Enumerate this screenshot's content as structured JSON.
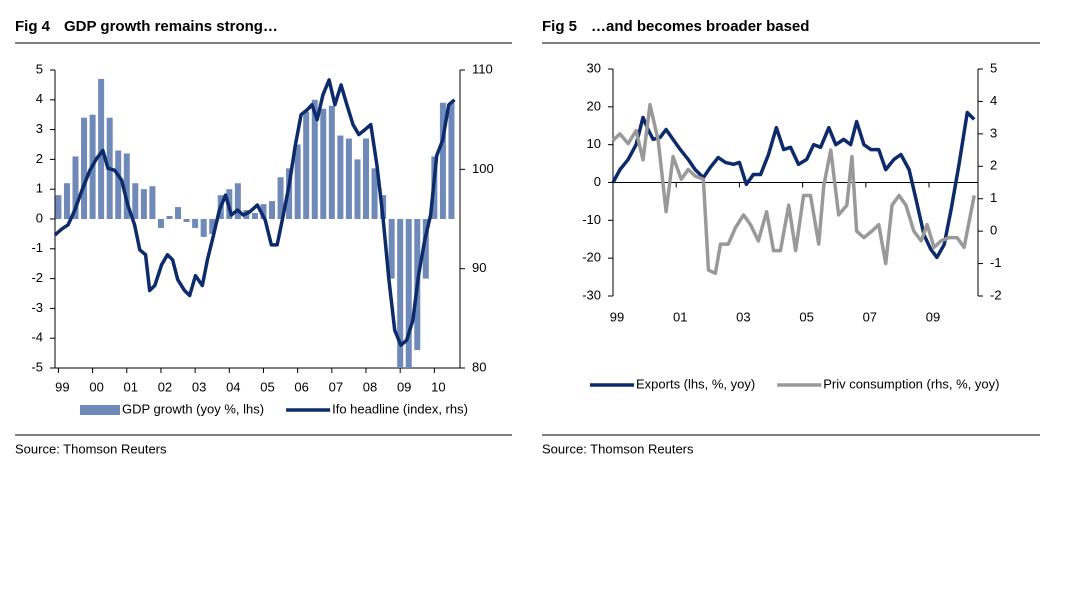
{
  "chart_data": [
    {
      "type": "bar",
      "figure": "Fig 4",
      "title": "GDP growth remains strong…",
      "source": "Source: Thomson Reuters",
      "xlim": [
        1998.9,
        2010.75
      ],
      "xticks": [
        {
          "value": 1999,
          "label": "99"
        },
        {
          "value": 2000,
          "label": "00"
        },
        {
          "value": 2001,
          "label": "01"
        },
        {
          "value": 2002,
          "label": "02"
        },
        {
          "value": 2003,
          "label": "03"
        },
        {
          "value": 2004,
          "label": "04"
        },
        {
          "value": 2005,
          "label": "05"
        },
        {
          "value": 2006,
          "label": "06"
        },
        {
          "value": 2007,
          "label": "07"
        },
        {
          "value": 2008,
          "label": "08"
        },
        {
          "value": 2009,
          "label": "09"
        },
        {
          "value": 2010,
          "label": "10"
        }
      ],
      "ylim": [
        -5,
        5
      ],
      "yticks": [
        -5,
        -4,
        -3,
        -2,
        -1,
        0,
        1,
        2,
        3,
        4,
        5
      ],
      "y2lim": [
        80,
        110
      ],
      "y2ticks": [
        80,
        90,
        100,
        110
      ],
      "series": [
        {
          "name": "GDP growth (yoy %, lhs)",
          "type": "bar",
          "color": "#6f89b9",
          "x": [
            1999,
            1999.25,
            1999.5,
            1999.75,
            2000,
            2000.25,
            2000.5,
            2000.75,
            2001,
            2001.25,
            2001.5,
            2001.75,
            2002,
            2002.25,
            2002.5,
            2002.75,
            2003,
            2003.25,
            2003.5,
            2003.75,
            2004,
            2004.25,
            2004.5,
            2004.75,
            2005,
            2005.25,
            2005.5,
            2005.75,
            2006,
            2006.25,
            2006.5,
            2006.75,
            2007,
            2007.25,
            2007.5,
            2007.75,
            2008,
            2008.25,
            2008.5,
            2008.75,
            2009,
            2009.25,
            2009.5,
            2009.75,
            2010,
            2010.25,
            2010.5
          ],
          "values": [
            0.8,
            1.2,
            2.1,
            3.4,
            3.5,
            4.7,
            3.4,
            2.3,
            2.2,
            1.2,
            1.0,
            1.1,
            -0.3,
            0.1,
            0.4,
            -0.1,
            -0.3,
            -0.6,
            -0.5,
            0.8,
            1.0,
            1.2,
            0.3,
            0.2,
            0.5,
            0.6,
            1.4,
            1.7,
            2.5,
            3.6,
            4.0,
            3.7,
            3.8,
            2.8,
            2.7,
            2.0,
            2.7,
            1.7,
            0.8,
            -2.0,
            -5.0,
            -5.0,
            -4.4,
            -2.0,
            2.1,
            3.9,
            3.9
          ]
        },
        {
          "name": "Ifo headline (index, rhs)",
          "type": "line",
          "axis": "y2",
          "color": "#0d2b6b",
          "x": [
            1998.9,
            1999.1,
            1999.28,
            1999.48,
            1999.69,
            1999.92,
            2000.12,
            2000.3,
            2000.45,
            2000.65,
            2000.85,
            2001.03,
            2001.23,
            2001.38,
            2001.55,
            2001.67,
            2001.82,
            2002.02,
            2002.19,
            2002.34,
            2002.49,
            2002.69,
            2002.84,
            2003.01,
            2003.21,
            2003.36,
            2003.54,
            2003.71,
            2003.89,
            2004.06,
            2004.24,
            2004.41,
            2004.59,
            2004.82,
            2005.05,
            2005.23,
            2005.4,
            2005.58,
            2005.75,
            2005.93,
            2006.1,
            2006.28,
            2006.42,
            2006.57,
            2006.74,
            2006.92,
            2007.09,
            2007.27,
            2007.44,
            2007.62,
            2007.79,
            2007.97,
            2008.14,
            2008.32,
            2008.49,
            2008.67,
            2008.84,
            2009.02,
            2009.19,
            2009.37,
            2009.54,
            2009.72,
            2009.89,
            2010.07,
            2010.24,
            2010.42,
            2010.59
          ],
          "values": [
            93.4,
            94.0,
            94.4,
            95.9,
            97.9,
            99.9,
            101.1,
            101.9,
            100.1,
            99.9,
            98.9,
            96.4,
            94.4,
            91.9,
            91.4,
            87.8,
            88.3,
            90.4,
            91.4,
            90.9,
            88.9,
            87.8,
            87.3,
            89.3,
            88.3,
            90.9,
            93.4,
            95.9,
            97.4,
            95.4,
            95.9,
            95.4,
            95.7,
            96.4,
            94.9,
            92.4,
            92.4,
            95.4,
            98.4,
            102.4,
            105.5,
            106.0,
            106.5,
            105.0,
            107.5,
            109.0,
            106.5,
            108.5,
            106.5,
            104.5,
            103.5,
            104.0,
            104.5,
            100.4,
            95.4,
            88.9,
            83.8,
            82.3,
            82.8,
            84.8,
            89.4,
            92.9,
            95.4,
            101.4,
            102.9,
            106.5,
            107.0
          ]
        }
      ]
    },
    {
      "type": "line",
      "figure": "Fig 5",
      "title": "…and becomes broader based",
      "source": "Source: Thomson Reuters",
      "xlim": [
        1999,
        2010.55
      ],
      "xticks": [
        {
          "value": 1999,
          "label": "99"
        },
        {
          "value": 2001,
          "label": "01"
        },
        {
          "value": 2003,
          "label": "03"
        },
        {
          "value": 2005,
          "label": "05"
        },
        {
          "value": 2007,
          "label": "07"
        },
        {
          "value": 2009,
          "label": "09"
        }
      ],
      "ylim": [
        -30,
        30
      ],
      "yticks": [
        -30,
        -20,
        -10,
        0,
        10,
        20,
        30
      ],
      "y2lim": [
        -2,
        5
      ],
      "y2ticks": [
        -2,
        -1,
        0,
        1,
        2,
        3,
        4,
        5
      ],
      "series": [
        {
          "name": "Exports (lhs, %, yoy)",
          "color": "#0d2b6b",
          "x": [
            1999.0,
            1999.22,
            1999.48,
            1999.73,
            1999.95,
            2000.11,
            2000.27,
            2000.49,
            2000.68,
            2000.9,
            2001.13,
            2001.38,
            2001.6,
            2001.86,
            2002.08,
            2002.33,
            2002.56,
            2002.81,
            2003.0,
            2003.22,
            2003.44,
            2003.67,
            2003.92,
            2004.17,
            2004.4,
            2004.62,
            2004.87,
            2005.13,
            2005.35,
            2005.57,
            2005.83,
            2006.05,
            2006.3,
            2006.52,
            2006.71,
            2006.94,
            2007.16,
            2007.41,
            2007.63,
            2007.89,
            2008.11,
            2008.37,
            2008.59,
            2008.84,
            2009.06,
            2009.25,
            2009.48,
            2009.7,
            2009.95,
            2010.21,
            2010.43
          ],
          "values": [
            0,
            3.4,
            6.1,
            10,
            17.2,
            14,
            11.4,
            11.9,
            14,
            11.4,
            8.7,
            6.1,
            3.4,
            1.3,
            4,
            6.6,
            5.3,
            4.8,
            5.3,
            -0.5,
            2.1,
            2.1,
            7.4,
            14.5,
            8.7,
            9.3,
            4.8,
            6.1,
            10,
            9.3,
            14.5,
            10,
            11.4,
            10,
            16.1,
            10,
            8.7,
            8.7,
            3.4,
            6.1,
            7.4,
            3.4,
            -4.5,
            -13.8,
            -17.7,
            -19.8,
            -16.4,
            -7.1,
            4.8,
            18.5,
            16.7
          ]
        },
        {
          "name": "Priv consumption (rhs, %, yoy)",
          "axis": "y2",
          "color": "#999999",
          "x": [
            1999.0,
            1999.22,
            1999.48,
            1999.73,
            1999.95,
            2000.17,
            2000.43,
            2000.68,
            2000.9,
            2001.16,
            2001.38,
            2001.6,
            2001.86,
            2002.02,
            2002.24,
            2002.4,
            2002.65,
            2002.87,
            2003.13,
            2003.35,
            2003.6,
            2003.86,
            2004.08,
            2004.3,
            2004.56,
            2004.78,
            2005.03,
            2005.25,
            2005.51,
            2005.67,
            2005.89,
            2006.14,
            2006.4,
            2006.56,
            2006.71,
            2006.94,
            2007.19,
            2007.41,
            2007.63,
            2007.83,
            2008.05,
            2008.27,
            2008.52,
            2008.75,
            2008.94,
            2009.16,
            2009.38,
            2009.63,
            2009.89,
            2010.11,
            2010.43
          ],
          "values": [
            2.8,
            3.0,
            2.7,
            3.1,
            2.2,
            3.9,
            2.8,
            0.6,
            2.3,
            1.6,
            1.9,
            1.7,
            1.6,
            -1.2,
            -1.3,
            -0.4,
            -0.4,
            0.1,
            0.5,
            0.2,
            -0.3,
            0.6,
            -0.6,
            -0.6,
            0.8,
            -0.6,
            1.1,
            1.1,
            -0.4,
            1.4,
            2.5,
            0.5,
            0.8,
            2.3,
            0.0,
            -0.2,
            0.0,
            0.2,
            -1.0,
            0.8,
            1.1,
            0.8,
            0.0,
            -0.3,
            0.2,
            -0.5,
            -0.3,
            -0.2,
            -0.2,
            -0.5,
            1.1
          ]
        }
      ]
    }
  ]
}
